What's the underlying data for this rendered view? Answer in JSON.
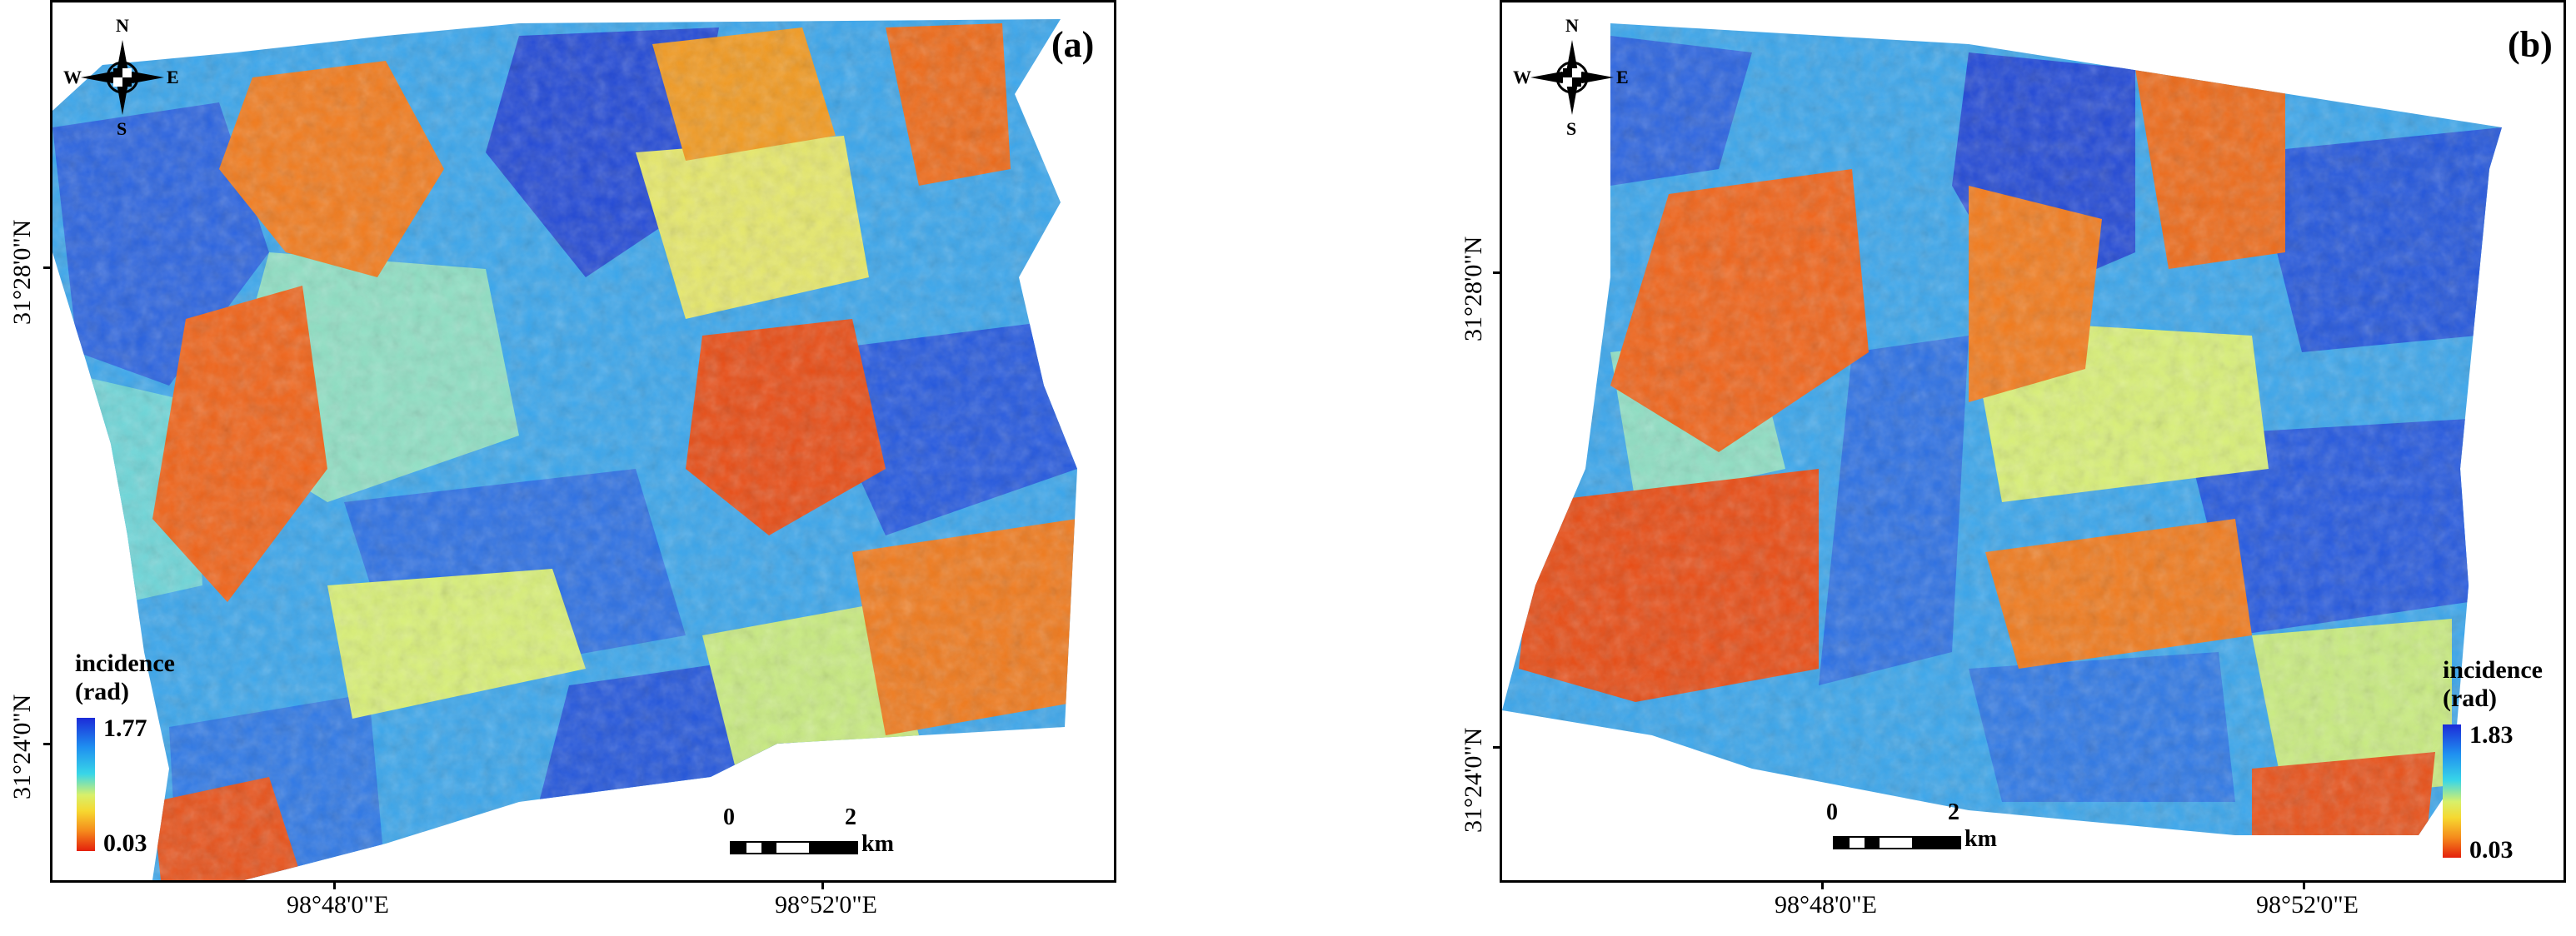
{
  "panels": {
    "a": {
      "label": "(a)",
      "lat_labels": [
        "31°28'0\"N",
        "31°24'0\"N"
      ],
      "lon_labels": [
        "98°48'0\"E",
        "98°52'0\"E"
      ],
      "legend": {
        "title_line1": "incidence",
        "title_line2": "(rad)",
        "max": "1.77",
        "min": "0.03"
      },
      "scale": {
        "zero": "0",
        "two": "2",
        "unit": "km"
      },
      "compass": {
        "n": "N",
        "s": "S",
        "e": "E",
        "w": "W"
      }
    },
    "b": {
      "label": "(b)",
      "lat_labels": [
        "31°28'0\"N",
        "31°24'0\"N"
      ],
      "lon_labels": [
        "98°48'0\"E",
        "98°52'0\"E"
      ],
      "legend": {
        "title_line1": "incidence",
        "title_line2": "(rad)",
        "max": "1.83",
        "min": "0.03"
      },
      "scale": {
        "zero": "0",
        "two": "2",
        "unit": "km"
      },
      "compass": {
        "n": "N",
        "s": "S",
        "e": "E",
        "w": "W"
      }
    }
  },
  "colors": {
    "high": "#1c2bd8",
    "mid_high": "#38d6e8",
    "mid": "#f6d830",
    "low": "#e4200c"
  }
}
